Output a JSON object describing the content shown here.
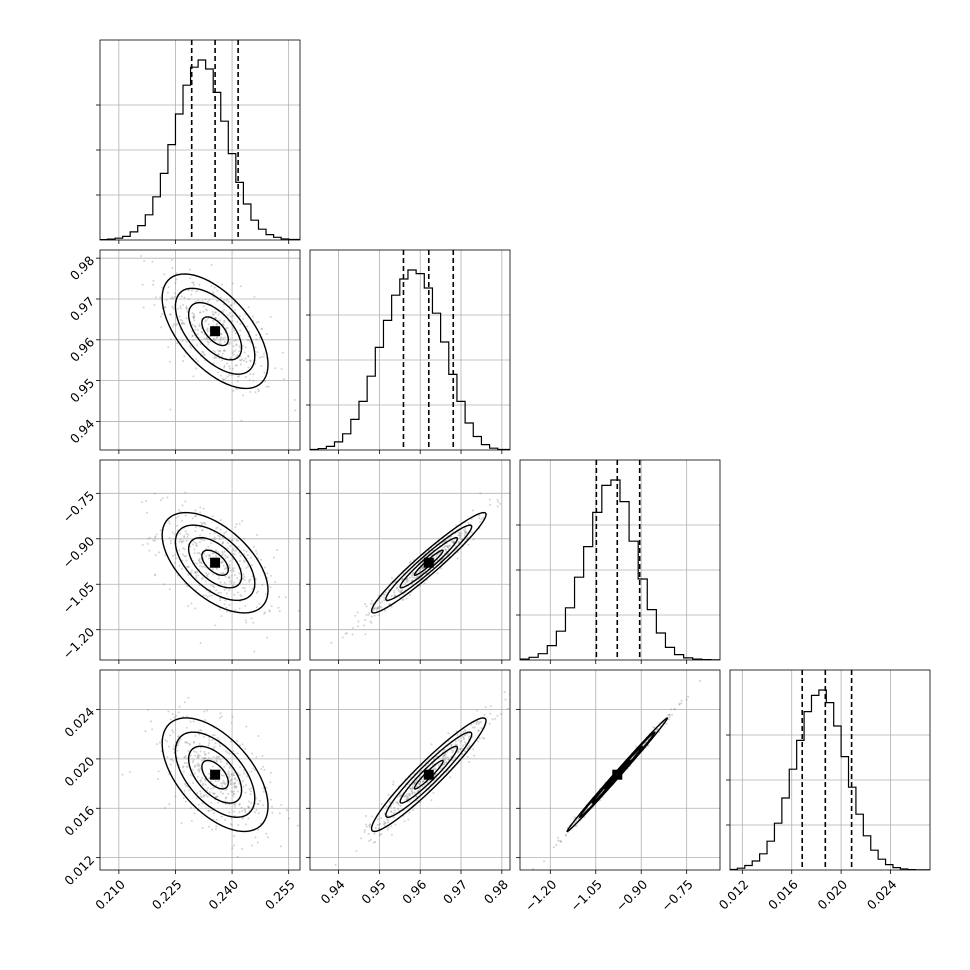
{
  "chart_data": {
    "type": "corner",
    "title": "",
    "parameters": [
      {
        "name": "",
        "range": [
          0.205,
          0.258
        ],
        "ticks": [
          "0.210",
          "0.225",
          "0.240",
          "0.255"
        ],
        "tick_values": [
          0.21,
          0.225,
          0.24,
          0.255
        ],
        "quantiles": [
          0.2293,
          0.2355,
          0.2416
        ],
        "hist": {
          "edges": [
            0.205,
            0.207,
            0.209,
            0.211,
            0.213,
            0.215,
            0.217,
            0.219,
            0.221,
            0.223,
            0.225,
            0.227,
            0.229,
            0.231,
            0.233,
            0.235,
            0.237,
            0.239,
            0.241,
            0.243,
            0.245,
            0.247,
            0.249,
            0.251,
            0.253,
            0.255,
            0.258
          ],
          "heights": [
            0.002,
            0.005,
            0.01,
            0.02,
            0.045,
            0.08,
            0.14,
            0.24,
            0.37,
            0.53,
            0.7,
            0.86,
            0.96,
            1.0,
            0.95,
            0.82,
            0.66,
            0.48,
            0.32,
            0.2,
            0.11,
            0.06,
            0.03,
            0.015,
            0.006,
            0.003
          ]
        }
      },
      {
        "name": "",
        "range": [
          0.933,
          0.982
        ],
        "ticks": [
          "0.94",
          "0.95",
          "0.96",
          "0.97",
          "0.98"
        ],
        "tick_values": [
          0.94,
          0.95,
          0.96,
          0.97,
          0.98
        ],
        "quantiles": [
          0.9559,
          0.9621,
          0.9681
        ],
        "hist": {
          "edges": [
            0.933,
            0.935,
            0.937,
            0.939,
            0.941,
            0.943,
            0.945,
            0.947,
            0.949,
            0.951,
            0.953,
            0.955,
            0.957,
            0.959,
            0.961,
            0.963,
            0.965,
            0.967,
            0.969,
            0.971,
            0.973,
            0.975,
            0.977,
            0.979,
            0.982
          ],
          "heights": [
            0.003,
            0.008,
            0.02,
            0.045,
            0.09,
            0.17,
            0.27,
            0.41,
            0.57,
            0.72,
            0.86,
            0.95,
            1.0,
            0.98,
            0.9,
            0.76,
            0.6,
            0.42,
            0.27,
            0.15,
            0.075,
            0.03,
            0.01,
            0.003
          ]
        }
      },
      {
        "name": "",
        "range": [
          -1.3,
          -0.64
        ],
        "ticks": [
          "−1.20",
          "−1.05",
          "−0.90",
          "−0.75"
        ],
        "tick_values": [
          -1.2,
          -1.05,
          -0.9,
          -0.75
        ],
        "quantiles": [
          -1.048,
          -0.979,
          -0.905
        ],
        "hist": {
          "edges": [
            -1.3,
            -1.27,
            -1.24,
            -1.21,
            -1.18,
            -1.15,
            -1.12,
            -1.09,
            -1.06,
            -1.03,
            -1.0,
            -0.97,
            -0.94,
            -0.91,
            -0.88,
            -0.85,
            -0.82,
            -0.79,
            -0.76,
            -0.73,
            -0.7,
            -0.67,
            -0.64
          ],
          "heights": [
            0.005,
            0.015,
            0.035,
            0.08,
            0.16,
            0.29,
            0.46,
            0.63,
            0.82,
            0.97,
            1.0,
            0.88,
            0.66,
            0.45,
            0.28,
            0.15,
            0.07,
            0.03,
            0.012,
            0.005,
            0.002,
            0.001
          ]
        }
      },
      {
        "name": "",
        "range": [
          0.011,
          0.0272
        ],
        "ticks": [
          "0.012",
          "0.016",
          "0.020",
          "0.024"
        ],
        "tick_values": [
          0.012,
          0.016,
          0.02,
          0.024
        ],
        "quantiles": [
          0.01685,
          0.01872,
          0.02085
        ],
        "hist": {
          "edges": [
            0.011,
            0.0116,
            0.0122,
            0.0128,
            0.0134,
            0.014,
            0.0146,
            0.0152,
            0.0158,
            0.0164,
            0.017,
            0.0176,
            0.0182,
            0.0188,
            0.0194,
            0.02,
            0.0206,
            0.0212,
            0.0218,
            0.0224,
            0.023,
            0.0236,
            0.0242,
            0.0248,
            0.0254,
            0.026,
            0.0272
          ],
          "heights": [
            0.003,
            0.01,
            0.025,
            0.05,
            0.09,
            0.16,
            0.26,
            0.4,
            0.56,
            0.72,
            0.88,
            0.97,
            1.0,
            0.93,
            0.8,
            0.63,
            0.46,
            0.31,
            0.19,
            0.11,
            0.06,
            0.03,
            0.013,
            0.006,
            0.002,
            0.001
          ]
        }
      }
    ],
    "pairs": [
      {
        "row": 1,
        "col": 0,
        "mean": [
          0.2355,
          0.9621
        ],
        "sd": [
          0.0061,
          0.0061
        ],
        "rho": -0.58
      },
      {
        "row": 2,
        "col": 0,
        "mean": [
          0.2355,
          -0.979
        ],
        "sd": [
          0.0061,
          0.072
        ],
        "rho": -0.55
      },
      {
        "row": 2,
        "col": 1,
        "mean": [
          0.9621,
          -0.979
        ],
        "sd": [
          0.0061,
          0.072
        ],
        "rho": 0.96
      },
      {
        "row": 3,
        "col": 0,
        "mean": [
          0.2355,
          0.01872
        ],
        "sd": [
          0.0061,
          0.002
        ],
        "rho": -0.55
      },
      {
        "row": 3,
        "col": 1,
        "mean": [
          0.9621,
          0.01872
        ],
        "sd": [
          0.0061,
          0.002
        ],
        "rho": 0.95
      },
      {
        "row": 3,
        "col": 2,
        "mean": [
          -0.979,
          0.01872
        ],
        "sd": [
          0.072,
          0.002
        ],
        "rho": 0.997
      }
    ],
    "contour_levels_sigma": [
      0.5,
      1.0,
      1.5,
      2.0
    ],
    "grid": true,
    "colors": {
      "density": "#000000",
      "points": "#808080",
      "grid": "#b0b0b0"
    }
  }
}
